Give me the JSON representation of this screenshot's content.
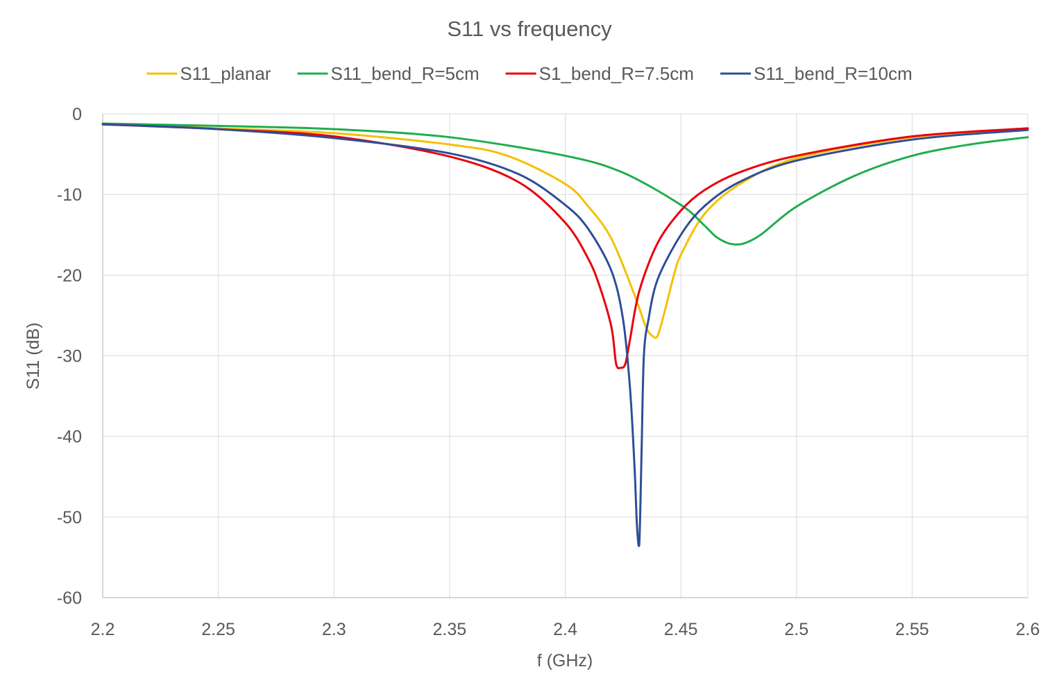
{
  "chart_data": {
    "type": "line",
    "title": "S11 vs frequency",
    "xlabel": "f (GHz)",
    "ylabel": "S11 (dB)",
    "xlim": [
      2.2,
      2.6
    ],
    "ylim": [
      -60,
      0
    ],
    "xticks": [
      2.2,
      2.25,
      2.3,
      2.35,
      2.4,
      2.45,
      2.5,
      2.55,
      2.6
    ],
    "xtick_labels": [
      "2.2",
      "2.25",
      "2.3",
      "2.35",
      "2.4",
      "2.45",
      "2.5",
      "2.55",
      "2.6"
    ],
    "yticks": [
      0,
      -10,
      -20,
      -30,
      -40,
      -50,
      -60
    ],
    "ytick_labels": [
      "0",
      "-10",
      "-20",
      "-30",
      "-40",
      "-50",
      "-60"
    ],
    "grid": true,
    "legend_position": "top",
    "series": [
      {
        "name": "S11_planar",
        "color": "#f5c000",
        "x": [
          2.2,
          2.25,
          2.3,
          2.35,
          2.375,
          2.4,
          2.41,
          2.42,
          2.43,
          2.435,
          2.438,
          2.44,
          2.443,
          2.447,
          2.45,
          2.46,
          2.475,
          2.5,
          2.55,
          2.6
        ],
        "y": [
          -1.3,
          -1.8,
          -2.4,
          -3.8,
          -5.2,
          -8.7,
          -11.5,
          -15.5,
          -22.5,
          -26.5,
          -27.6,
          -27.5,
          -24.5,
          -20,
          -17.5,
          -12.5,
          -8.8,
          -5.5,
          -2.9,
          -1.8
        ]
      },
      {
        "name": "S11_bend_R=5cm",
        "color": "#1fad4e",
        "x": [
          2.2,
          2.25,
          2.3,
          2.35,
          2.4,
          2.425,
          2.45,
          2.46,
          2.465,
          2.47,
          2.474,
          2.478,
          2.485,
          2.5,
          2.525,
          2.55,
          2.575,
          2.6
        ],
        "y": [
          -1.2,
          -1.5,
          -1.9,
          -2.9,
          -5.2,
          -7.3,
          -11.3,
          -13.8,
          -15.2,
          -16,
          -16.2,
          -16,
          -14.9,
          -11.5,
          -7.7,
          -5.2,
          -3.8,
          -2.9
        ]
      },
      {
        "name": "S1_bend_R=7.5cm",
        "color": "#e8000b",
        "x": [
          2.2,
          2.25,
          2.3,
          2.35,
          2.38,
          2.4,
          2.41,
          2.415,
          2.42,
          2.422,
          2.424,
          2.426,
          2.428,
          2.432,
          2.44,
          2.45,
          2.46,
          2.475,
          2.5,
          2.55,
          2.6
        ],
        "y": [
          -1.3,
          -1.9,
          -2.8,
          -5.3,
          -8.5,
          -13.5,
          -18,
          -21.5,
          -26.5,
          -31,
          -31.5,
          -31,
          -28,
          -22,
          -16,
          -12,
          -9.5,
          -7.3,
          -5.2,
          -2.8,
          -1.8
        ]
      },
      {
        "name": "S11_bend_R=10cm",
        "color": "#2e4e96",
        "x": [
          2.2,
          2.25,
          2.3,
          2.35,
          2.38,
          2.4,
          2.41,
          2.42,
          2.425,
          2.428,
          2.43,
          2.431,
          2.432,
          2.433,
          2.434,
          2.436,
          2.44,
          2.45,
          2.46,
          2.475,
          2.5,
          2.55,
          2.6
        ],
        "y": [
          -1.3,
          -1.9,
          -3,
          -4.9,
          -7.5,
          -11.3,
          -14.3,
          -19.5,
          -25.5,
          -34,
          -44,
          -51,
          -53.5,
          -42,
          -30,
          -25.5,
          -20.5,
          -15,
          -11.5,
          -8.5,
          -5.8,
          -3.2,
          -2
        ]
      }
    ]
  }
}
